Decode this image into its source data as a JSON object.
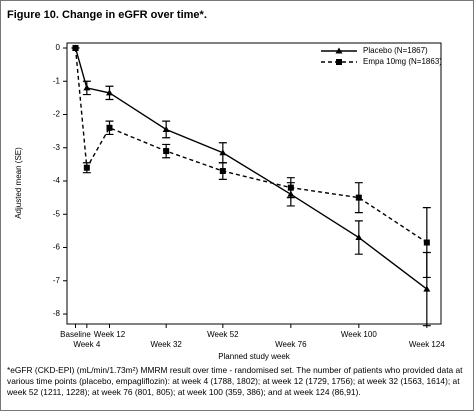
{
  "chart_data": {
    "type": "line",
    "title": "Figure 10. Change in eGFR over time*.",
    "xlabel": "Planned study week",
    "ylabel": "Adjusted mean (SE)",
    "footnote": "*eGFR (CKD-EPI) (mL/min/1.73m²) MMRM result over time - randomised set. The number of patients who provided data at various time points (placebo, empagliflozin): at week 4 (1788, 1802); at week 12 (1729, 1756); at week 32 (1563, 1614); at week 52 (1211, 1228); at week 76 (801, 805); at week 100 (359, 386); and at week 124 (86,91).",
    "x": [
      0,
      4,
      12,
      32,
      52,
      76,
      100,
      124
    ],
    "xlim": [
      -3,
      129
    ],
    "xticks": [
      {
        "value": 0,
        "label": "Baseline"
      },
      {
        "value": 4,
        "label": "Week 4"
      },
      {
        "value": 12,
        "label": "Week 12"
      },
      {
        "value": 32,
        "label": "Week 32"
      },
      {
        "value": 52,
        "label": "Week 52"
      },
      {
        "value": 76,
        "label": "Week 76"
      },
      {
        "value": 100,
        "label": "Week 100"
      },
      {
        "value": 124,
        "label": "Week 124"
      }
    ],
    "ylim": [
      -8.3,
      0.15
    ],
    "yticks": [
      0,
      -1,
      -2,
      -3,
      -4,
      -5,
      -6,
      -7,
      -8
    ],
    "legend": "upper right",
    "series": [
      {
        "name": "Placebo (N=1867)",
        "color": "#000000",
        "dash": false,
        "marker": "triangle",
        "values": [
          0,
          -1.2,
          -1.35,
          -2.45,
          -3.15,
          -4.4,
          -5.7,
          -7.25
        ],
        "errors": [
          0,
          0.2,
          0.2,
          0.25,
          0.3,
          0.35,
          0.5,
          1.1
        ]
      },
      {
        "name": "Empa 10mg (N=1863)",
        "color": "#000000",
        "dash": true,
        "marker": "square",
        "values": [
          0,
          -3.6,
          -2.4,
          -3.1,
          -3.7,
          -4.2,
          -4.5,
          -5.85
        ],
        "errors": [
          0,
          0.15,
          0.2,
          0.2,
          0.25,
          0.3,
          0.45,
          1.05
        ]
      }
    ]
  }
}
